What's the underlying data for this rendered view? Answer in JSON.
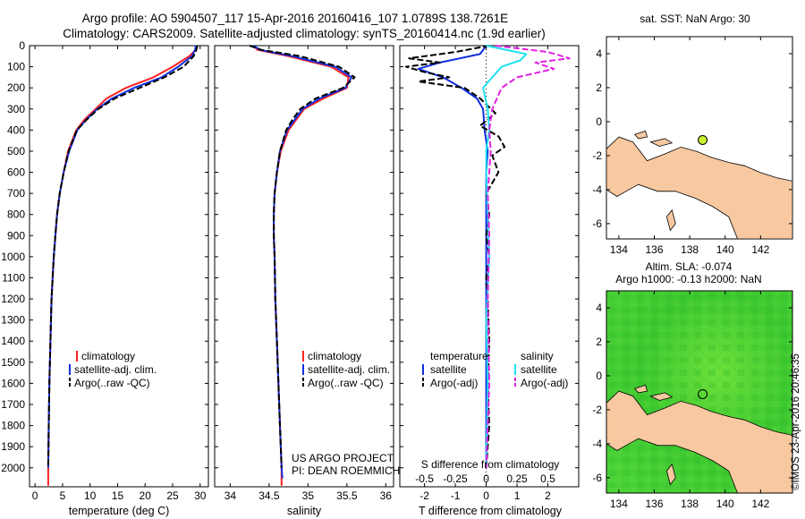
{
  "title_line1": "Argo profile: AO 5904507_117 15-Apr-2016 20160416_107 1.0789S 138.7261E",
  "title_line2": "Climatology: CARS2009. Satellite-adjusted climatology: synTS_20160414.nc (1.9d earlier)",
  "colors": {
    "clim": "#ff2020",
    "sat": "#1030e0",
    "argo": "#000000",
    "sal_sat": "#20e0f0",
    "sal_argo": "#e020e0",
    "land": "#f8c8a0",
    "marker": "#c8f030"
  },
  "chart_data": [
    {
      "id": "temperature",
      "type": "line",
      "xlabel": "temperature (deg C)",
      "ylabel": "",
      "xlim": [
        -1,
        31.5
      ],
      "ylim": [
        2090,
        0
      ],
      "xticks": [
        0,
        5,
        10,
        15,
        20,
        25,
        30
      ],
      "yticks": [
        0,
        100,
        200,
        300,
        400,
        500,
        600,
        700,
        800,
        900,
        1000,
        1100,
        1200,
        1300,
        1400,
        1500,
        1600,
        1700,
        1800,
        1900,
        2000
      ],
      "legend": [
        "climatology",
        "satellite-adj. clim.",
        "Argo(..raw -QC)"
      ],
      "series": [
        {
          "name": "climatology",
          "color": "clim",
          "dash": false,
          "x": [
            29.3,
            29.2,
            28,
            25,
            21.5,
            16.5,
            13,
            11,
            9,
            7.5,
            6,
            5.2,
            4.5,
            4,
            3.7,
            3.4,
            3,
            2.8,
            2.6,
            2.5,
            2.4,
            2.4
          ],
          "y": [
            0,
            20,
            50,
            100,
            150,
            200,
            250,
            300,
            350,
            400,
            500,
            600,
            700,
            800,
            900,
            1000,
            1200,
            1400,
            1600,
            1800,
            2000,
            2085
          ]
        },
        {
          "name": "satellite-adj. clim.",
          "color": "sat",
          "dash": false,
          "x": [
            29.2,
            29.1,
            28.5,
            26,
            23,
            18,
            14,
            11.3,
            9.3,
            7.7,
            6.2,
            5.2,
            4.5,
            4,
            3.7,
            3.4,
            3,
            2.8,
            2.6,
            2.5,
            2.4
          ],
          "y": [
            0,
            20,
            50,
            100,
            150,
            200,
            250,
            300,
            350,
            400,
            500,
            600,
            700,
            800,
            900,
            1000,
            1200,
            1400,
            1600,
            1800,
            2000
          ]
        },
        {
          "name": "Argo(..raw -QC)",
          "color": "argo",
          "dash": true,
          "x": [
            29.5,
            29.3,
            28.8,
            27,
            23.5,
            19,
            14.5,
            11.5,
            9.4,
            7.6,
            6.1,
            5.2,
            4.5,
            4,
            3.7,
            3.4,
            3,
            2.8,
            2.6,
            2.5,
            2.4
          ],
          "y": [
            0,
            20,
            50,
            100,
            150,
            200,
            250,
            300,
            350,
            400,
            500,
            600,
            700,
            800,
            900,
            1000,
            1200,
            1400,
            1600,
            1800,
            2000
          ]
        }
      ]
    },
    {
      "id": "salinity",
      "type": "line",
      "xlabel": "salinity",
      "ylabel": "",
      "xlim": [
        33.8,
        36.1
      ],
      "ylim": [
        2090,
        0
      ],
      "xticks": [
        34,
        34.5,
        35,
        35.5,
        36
      ],
      "legend": [
        "climatology",
        "satellite-adj. clim.",
        "Argo(..raw -QC)"
      ],
      "series": [
        {
          "name": "climatology",
          "color": "clim",
          "dash": false,
          "x": [
            34.3,
            34.35,
            34.75,
            35.3,
            35.52,
            35.5,
            35.2,
            34.95,
            34.85,
            34.75,
            34.65,
            34.6,
            34.57,
            34.56,
            34.56,
            34.57,
            34.58,
            34.6,
            34.62,
            34.64,
            34.66,
            34.66
          ],
          "y": [
            0,
            20,
            50,
            100,
            150,
            200,
            250,
            300,
            350,
            400,
            500,
            600,
            700,
            800,
            900,
            1000,
            1200,
            1400,
            1600,
            1800,
            2000,
            2085
          ]
        },
        {
          "name": "satellite-adj. clim.",
          "color": "sat",
          "dash": false,
          "x": [
            34.3,
            34.38,
            34.8,
            35.35,
            35.56,
            35.48,
            35.15,
            34.93,
            34.83,
            34.73,
            34.64,
            34.6,
            34.57,
            34.56,
            34.56,
            34.57,
            34.58,
            34.6,
            34.62,
            34.64,
            34.66,
            34.67
          ],
          "y": [
            0,
            20,
            50,
            100,
            150,
            200,
            250,
            300,
            350,
            400,
            500,
            600,
            700,
            800,
            900,
            1000,
            1200,
            1400,
            1600,
            1800,
            2000,
            2050
          ]
        },
        {
          "name": "Argo(..raw -QC)",
          "color": "argo",
          "dash": true,
          "x": [
            34.25,
            34.4,
            34.9,
            35.4,
            35.6,
            35.45,
            35.1,
            34.9,
            34.8,
            34.72,
            34.64,
            34.6,
            34.57,
            34.56,
            34.56,
            34.57,
            34.58,
            34.6,
            34.62,
            34.64,
            34.66
          ],
          "y": [
            0,
            20,
            50,
            100,
            150,
            200,
            250,
            300,
            350,
            400,
            500,
            600,
            700,
            800,
            900,
            1000,
            1200,
            1400,
            1600,
            1800,
            2000
          ]
        }
      ],
      "annotation_line1": "US ARGO PROJECT",
      "annotation_line2": "PI: DEAN ROEMMICH"
    },
    {
      "id": "difference",
      "type": "line",
      "xlabel": "T difference from climatology",
      "x2label": "S difference from climatology",
      "xlim": [
        -2.8,
        3
      ],
      "ylim": [
        2090,
        0
      ],
      "xticks": [
        -2,
        -1,
        0,
        1,
        2
      ],
      "xticklabels": [
        "-2",
        "-1",
        "0",
        "1",
        "2"
      ],
      "x2ticks": [
        -2,
        -1,
        0,
        1,
        2
      ],
      "x2ticklabels": [
        "-0.5",
        "-0.25",
        "0",
        "0.25",
        "0.5"
      ],
      "legend_temperature_title": "temperature",
      "legend_salinity_title": "salinity",
      "legend_entries": [
        "satellite",
        "Argo(-adj)"
      ],
      "series": [
        {
          "name": "T satellite",
          "color": "sat",
          "dash": false,
          "x": [
            0,
            -0.2,
            -1.5,
            -2.2,
            -1.4,
            -0.8,
            -0.3,
            -0.1,
            -0.05,
            0.05,
            0,
            0,
            0,
            0
          ],
          "y": [
            0,
            40,
            80,
            110,
            150,
            200,
            250,
            300,
            400,
            500,
            600,
            1000,
            1500,
            2000
          ]
        },
        {
          "name": "T Argo(-adj)",
          "color": "argo",
          "dash": true,
          "x": [
            0.1,
            -1,
            -2.5,
            -1.5,
            -2.6,
            -2,
            -1.2,
            -2.2,
            -0.7,
            -0.2,
            0.3,
            -0.2,
            0.4,
            0.6,
            0.2,
            0.4,
            0,
            0.1,
            0,
            0.1,
            0,
            0.05,
            0.1,
            0.05,
            0.1,
            0
          ],
          "y": [
            0,
            30,
            60,
            80,
            100,
            125,
            150,
            170,
            200,
            250,
            320,
            380,
            430,
            480,
            520,
            600,
            700,
            800,
            900,
            1000,
            1100,
            1200,
            1400,
            1600,
            1800,
            2000
          ]
        },
        {
          "name": "S satellite",
          "color": "sal_sat",
          "dash": false,
          "x": [
            0,
            1.3,
            1.1,
            0.5,
            0.2,
            -0.1,
            0.05,
            0.1,
            0,
            0,
            0.05,
            0.1,
            0,
            0.05,
            0
          ],
          "y": [
            0,
            40,
            70,
            100,
            150,
            200,
            300,
            400,
            500,
            600,
            800,
            1000,
            1300,
            1600,
            2000
          ]
        },
        {
          "name": "S Argo(-adj)",
          "color": "sal_argo",
          "dash": true,
          "x": [
            0.3,
            2,
            2.7,
            1.6,
            2.2,
            1,
            0.5,
            0.2,
            0.1,
            0.15,
            0.05,
            0.1,
            0.05,
            0.1,
            0
          ],
          "y": [
            0,
            30,
            60,
            80,
            110,
            150,
            200,
            300,
            400,
            500,
            700,
            900,
            1200,
            1600,
            2000
          ]
        }
      ]
    },
    {
      "id": "sst_map",
      "type": "scatter",
      "title": "sat. SST: NaN Argo: 30",
      "xlim": [
        133.3,
        143.8
      ],
      "ylim": [
        -6.9,
        5
      ],
      "xticks": [
        134,
        136,
        138,
        140,
        142
      ],
      "yticks": [
        -6,
        -4,
        -2,
        0,
        2,
        4
      ],
      "points": [
        {
          "x": 138.73,
          "y": -1.08
        }
      ]
    },
    {
      "id": "sla_map",
      "type": "heatmap",
      "title_line1": "Altim. SLA: -0.074",
      "title_line2": "Argo h1000: -0.13 h2000: NaN",
      "xlim": [
        133.3,
        143.8
      ],
      "ylim": [
        -6.9,
        5
      ],
      "xticks": [
        134,
        136,
        138,
        140,
        142
      ],
      "yticks": [
        -6,
        -4,
        -2,
        0,
        2,
        4
      ],
      "points": [
        {
          "x": 138.73,
          "y": -1.08
        }
      ]
    }
  ],
  "watermark": "©IMOS 23-Apr-2016 20:46:35"
}
